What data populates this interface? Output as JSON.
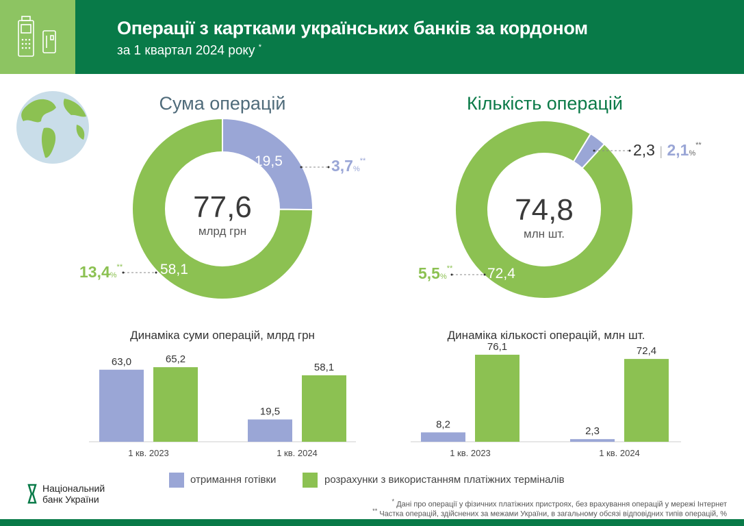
{
  "header": {
    "title": "Операції з картками українських банків за кордоном",
    "subtitle": "за 1 квартал 2024 року",
    "subtitle_mark": "*"
  },
  "colors": {
    "header": "#087a48",
    "accent_light": "#8dc462",
    "cash": "#9aa6d6",
    "terminals": "#8cc152"
  },
  "chart_data": [
    {
      "type": "pie",
      "title": "Сума операцій",
      "total": "77,6",
      "unit": "млрд грн",
      "slices": [
        {
          "label": "19,5",
          "value": 19.5,
          "share_pct": "3,7"
        },
        {
          "label": "58,1",
          "value": 58.1,
          "share_pct": "13,4"
        }
      ]
    },
    {
      "type": "pie",
      "title": "Кількість операцій",
      "total": "74,8",
      "unit": "млн шт.",
      "slices": [
        {
          "label": "2,3",
          "value": 2.3,
          "share_pct": "2,1"
        },
        {
          "label": "72,4",
          "value": 72.4,
          "share_pct": "5,5"
        }
      ]
    },
    {
      "type": "bar",
      "title": "Динаміка суми операцій, млрд грн",
      "categories": [
        "1 кв. 2023",
        "1 кв. 2024"
      ],
      "series": [
        {
          "name": "отримання готівки",
          "values": [
            63.0,
            19.5
          ],
          "labels": [
            "63,0",
            "19,5"
          ]
        },
        {
          "name": "розрахунки з використанням платіжних терміналів",
          "values": [
            65.2,
            58.1
          ],
          "labels": [
            "65,2",
            "58,1"
          ]
        }
      ]
    },
    {
      "type": "bar",
      "title": "Динаміка кількості операцій, млн шт.",
      "categories": [
        "1 кв. 2023",
        "1 кв. 2024"
      ],
      "series": [
        {
          "name": "отримання готівки",
          "values": [
            8.2,
            2.3
          ],
          "labels": [
            "8,2",
            "2,3"
          ]
        },
        {
          "name": "розрахунки з використанням платіжних терміналів",
          "values": [
            76.1,
            72.4
          ],
          "labels": [
            "76,1",
            "72,4"
          ]
        }
      ]
    }
  ],
  "percent_sign": "%",
  "double_mark": "**",
  "separator": "|",
  "legend": [
    "отримання готівки",
    "розрахунки з використанням платіжних терміналів"
  ],
  "logo": "Національний банк України",
  "footnotes": [
    "Дані про операції у фізичних платіжних пристроях, без врахування операцій у мережі Інтернет",
    "Частка операцій, здійснених за межами України, в загальному обсязі відповідних типів операцій, %"
  ],
  "footnote_marks": [
    "*",
    "**"
  ]
}
